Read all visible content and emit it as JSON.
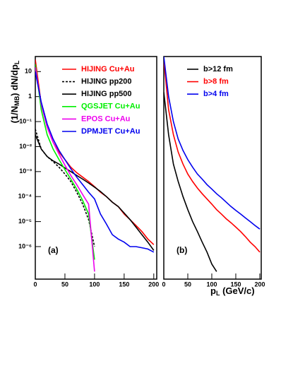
{
  "chart_data": [
    {
      "type": "line",
      "log_y": true,
      "ylabel": [
        "(1/N",
        "MB",
        ") dN/dp",
        "L"
      ],
      "annotation": "(a)",
      "x": [
        0,
        10,
        20,
        30,
        40,
        50,
        60,
        70,
        80,
        90,
        100,
        110,
        120,
        130,
        140,
        150,
        160,
        170,
        180,
        190,
        200
      ],
      "xlim": [
        0,
        205
      ],
      "xticks": [
        0,
        50,
        100,
        150,
        200
      ],
      "ylim": [
        5e-08,
        40
      ],
      "yticks": [
        10,
        1,
        {
          "value": 0.1,
          "label": "10⁻¹"
        },
        {
          "value": 0.01,
          "label": "10⁻²"
        },
        {
          "value": 0.001,
          "label": "10⁻³"
        },
        {
          "value": 0.0001,
          "label": "10⁻⁴"
        },
        {
          "value": 1e-05,
          "label": "10⁻⁵"
        },
        {
          "value": 1e-06,
          "label": "10⁻⁶"
        }
      ],
      "series": [
        {
          "name": "HIJING Cu+Au",
          "color": "#ff0000",
          "values": [
            30,
            0.5,
            0.06,
            0.015,
            0.006,
            0.003,
            0.0015,
            0.0009,
            0.0006,
            0.0004,
            0.00025,
            0.00015,
            0.0001,
            6e-05,
            4e-05,
            2e-05,
            1.2e-05,
            7e-06,
            4e-06,
            2e-06,
            1.2e-06
          ]
        },
        {
          "name": "HIJING pp200",
          "color": "#000000",
          "linestyle": "dashed",
          "values": [
            0.05,
            0.008,
            0.004,
            0.0025,
            0.0015,
            0.0008,
            0.0004,
            0.00015,
            5e-05,
            1.2e-05,
            1e-06,
            null,
            null,
            null,
            null,
            null,
            null,
            null,
            null,
            null,
            null
          ]
        },
        {
          "name": "HIJING pp500",
          "color": "#000000",
          "values": [
            0.03,
            0.008,
            0.004,
            0.0027,
            0.002,
            0.0014,
            0.001,
            0.0007,
            0.0005,
            0.00035,
            0.00024,
            0.00016,
            0.0001,
            6e-05,
            4e-05,
            2.2e-05,
            1.2e-05,
            6e-06,
            3e-06,
            1.5e-06,
            7e-07
          ]
        },
        {
          "name": "QGSJET Cu+Au",
          "color": "#00ee00",
          "values": [
            20,
            0.3,
            0.03,
            0.008,
            0.003,
            0.0012,
            0.0005,
            0.0002,
            7e-05,
            2e-05,
            3e-07,
            null,
            null,
            null,
            null,
            null,
            null,
            null,
            null,
            null,
            null
          ]
        },
        {
          "name": "EPOS Cu+Au",
          "color": "#ee00ee",
          "values": [
            15,
            0.5,
            0.06,
            0.015,
            0.005,
            0.0018,
            0.0007,
            0.0003,
            0.00012,
            5e-05,
            1e-07,
            null,
            null,
            null,
            null,
            null,
            null,
            null,
            null,
            null,
            null
          ]
        },
        {
          "name": "DPMJET Cu+Au",
          "color": "#0000ee",
          "values": [
            10,
            0.6,
            0.08,
            0.02,
            0.007,
            0.003,
            0.0013,
            0.0006,
            0.0003,
            0.00015,
            8e-05,
            2e-05,
            8e-06,
            3e-06,
            2e-06,
            1.5e-06,
            1e-06,
            1e-06,
            9e-07,
            8e-07,
            6e-07
          ]
        }
      ]
    },
    {
      "type": "line",
      "log_y": true,
      "xlabel": [
        "p",
        "L",
        " (GeV/c)"
      ],
      "annotation": "(b)",
      "x": [
        0,
        10,
        20,
        30,
        40,
        50,
        60,
        70,
        80,
        90,
        100,
        110,
        120,
        130,
        140,
        150,
        160,
        170,
        180,
        190,
        200
      ],
      "xlim": [
        0,
        203
      ],
      "xticks": [
        0,
        50,
        100,
        150,
        200
      ],
      "ylim": [
        5e-08,
        40
      ],
      "series": [
        {
          "name": "b>12 fm",
          "color": "#000000",
          "values": [
            1.5,
            0.03,
            0.002,
            0.0004,
            0.0001,
            3e-05,
            1e-05,
            4e-06,
            1.5e-06,
            6e-07,
            2e-07,
            1e-07,
            null,
            null,
            null,
            null,
            null,
            null,
            null,
            null,
            null
          ]
        },
        {
          "name": "b>8 fm",
          "color": "#ff0000",
          "values": [
            30,
            0.3,
            0.03,
            0.006,
            0.002,
            0.0008,
            0.0004,
            0.00022,
            0.00013,
            8e-05,
            5e-05,
            3e-05,
            2e-05,
            1.3e-05,
            9e-06,
            6e-06,
            4e-06,
            2.5e-06,
            1.5e-06,
            1e-06,
            6e-07
          ]
        },
        {
          "name": "b>4 fm",
          "color": "#0000ee",
          "values": [
            40,
            1,
            0.1,
            0.02,
            0.007,
            0.003,
            0.0015,
            0.0008,
            0.0005,
            0.0003,
            0.0002,
            0.00013,
            9e-05,
            6e-05,
            4e-05,
            2.8e-05,
            2e-05,
            1.4e-05,
            1e-05,
            7e-06,
            5e-06
          ]
        }
      ]
    }
  ]
}
